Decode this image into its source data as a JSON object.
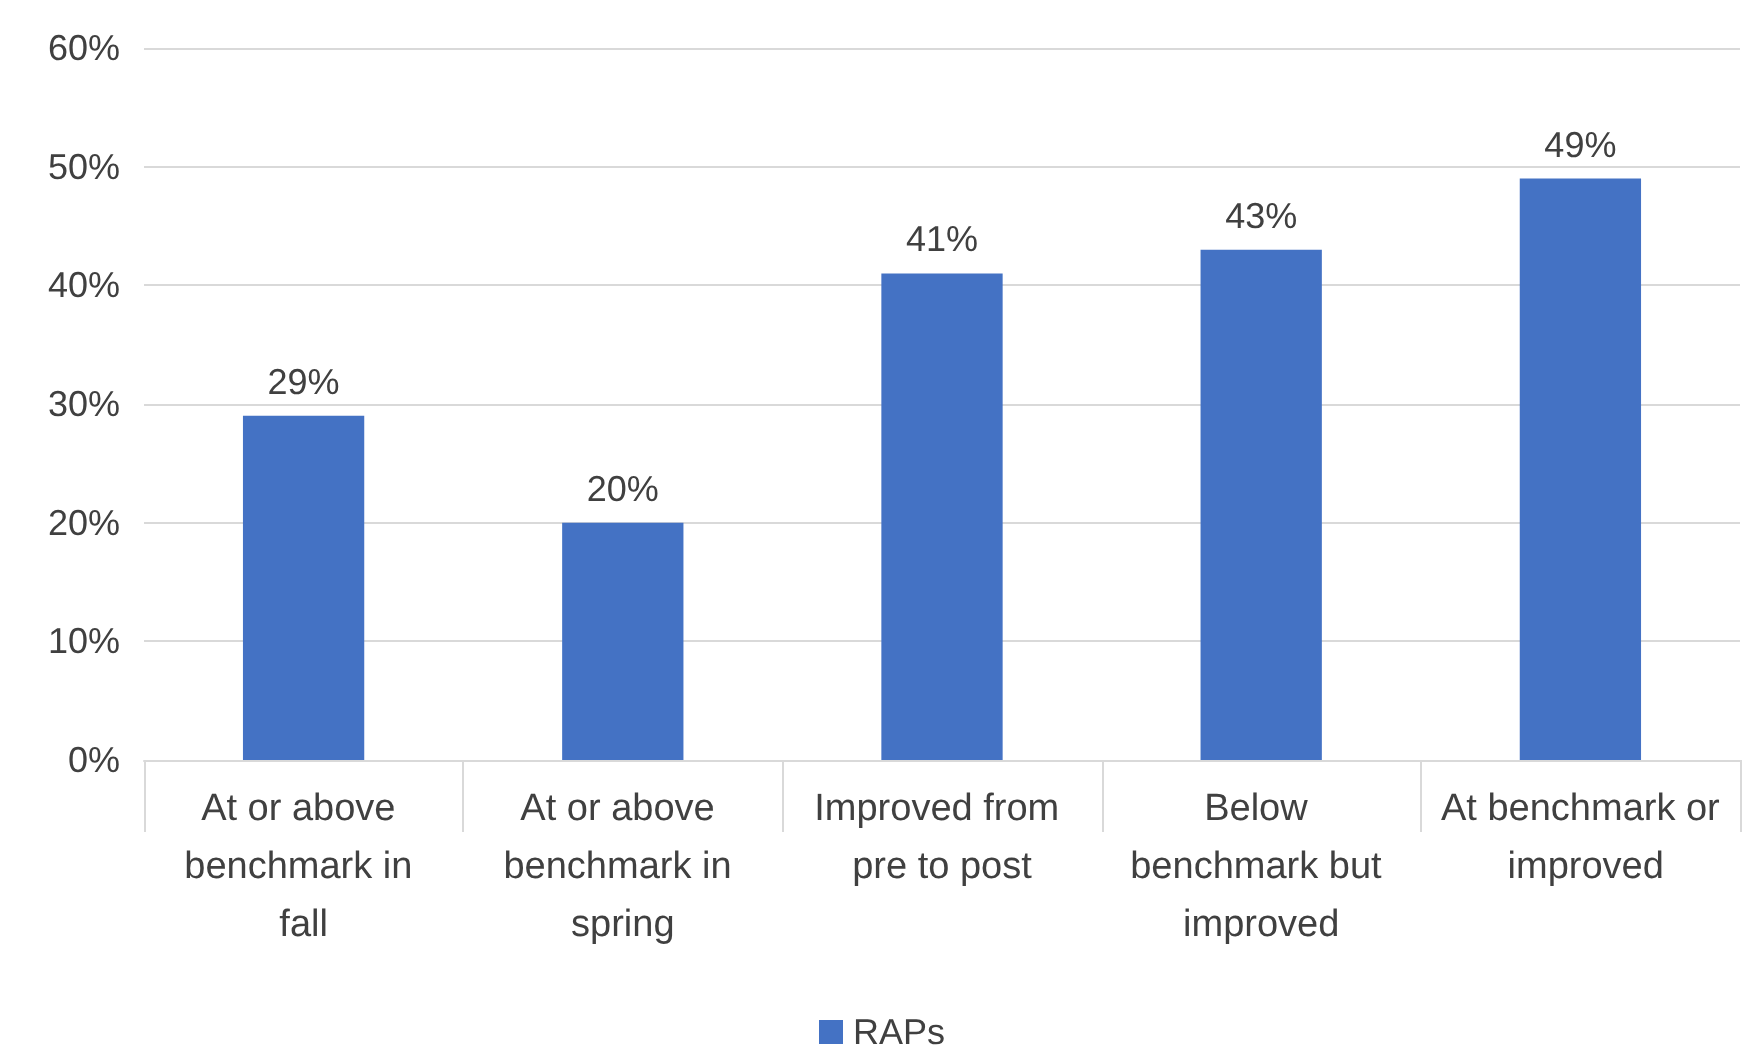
{
  "chart_data": {
    "type": "bar",
    "categories": [
      "At or above benchmark in fall",
      "At or above benchmark in spring",
      "Improved from pre to post",
      "Below benchmark but improved",
      "At benchmark or improved"
    ],
    "series": [
      {
        "name": "RAPs",
        "color": "#4472c4",
        "values": [
          29,
          20,
          41,
          43,
          49
        ],
        "value_labels": [
          "29%",
          "20%",
          "41%",
          "43%",
          "49%"
        ]
      }
    ],
    "ylim": [
      0,
      60
    ],
    "yticks": [
      {
        "value": 0,
        "label": "0%"
      },
      {
        "value": 10,
        "label": "10%"
      },
      {
        "value": 20,
        "label": "20%"
      },
      {
        "value": 30,
        "label": "30%"
      },
      {
        "value": 40,
        "label": "40%"
      },
      {
        "value": 50,
        "label": "50%"
      },
      {
        "value": 60,
        "label": "60%"
      }
    ],
    "grid": "y",
    "legend": "bottom"
  }
}
